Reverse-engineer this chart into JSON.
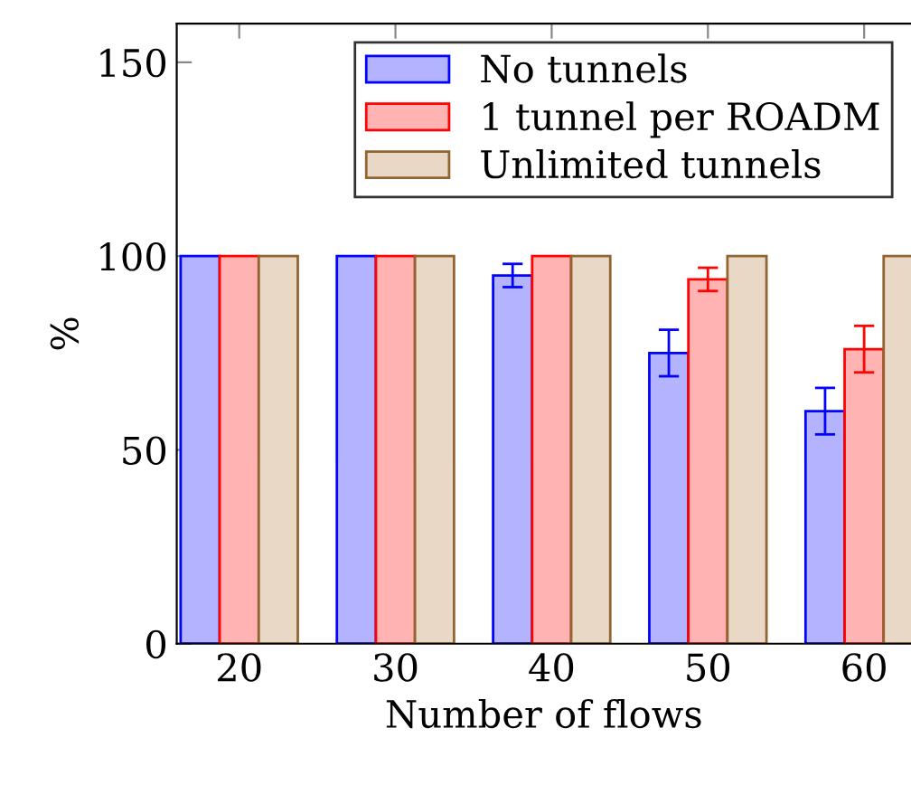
{
  "chart_data": {
    "type": "bar",
    "xlabel": "Number of flows",
    "ylabel": "%",
    "categories": [
      "20",
      "30",
      "40",
      "50",
      "60"
    ],
    "series": [
      {
        "name": "No tunnels",
        "color": "#b3b3ff",
        "values": [
          100,
          100,
          95,
          75,
          60
        ],
        "errors": [
          null,
          null,
          3,
          6,
          6
        ]
      },
      {
        "name": "1 tunnel per ROADM",
        "color": "#ffb3b3",
        "values": [
          100,
          100,
          100,
          94,
          76
        ],
        "errors": [
          null,
          null,
          null,
          3,
          6
        ]
      },
      {
        "name": "Unlimited tunnels",
        "color": "#e9d8c5",
        "values": [
          100,
          100,
          100,
          100,
          100
        ]
      }
    ],
    "ylim": [
      0,
      160
    ],
    "yticks": [
      0,
      50,
      100,
      150
    ],
    "grid": false,
    "legend": "top right"
  }
}
